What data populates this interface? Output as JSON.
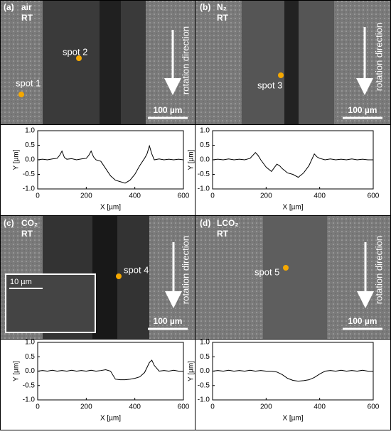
{
  "panels": [
    {
      "label": "(a)",
      "atmosphere": "air",
      "temperature": "RT",
      "spots": [
        "spot 2",
        "spot 1"
      ],
      "direction": "rotation direction",
      "scale": "100 µm"
    },
    {
      "label": "(b)",
      "atmosphere": "N₂",
      "temperature": "RT",
      "spots": [
        "spot 3"
      ],
      "direction": "rotation direction",
      "scale": "100 µm"
    },
    {
      "label": "(c)",
      "atmosphere": "CO₂",
      "temperature": "RT",
      "spots": [
        "spot 4"
      ],
      "direction": "rotation direction",
      "scale": "100 µm",
      "inset_scale": "10 µm"
    },
    {
      "label": "(d)",
      "atmosphere": "LCO₂",
      "temperature": "RT",
      "spots": [
        "spot 5"
      ],
      "direction": "rotation direction",
      "scale": "100 µm"
    }
  ],
  "chart_data": [
    {
      "type": "line",
      "xlabel": "X [µm]",
      "ylabel": "Y [µm]",
      "color": "#000000",
      "x": [
        0,
        20,
        40,
        60,
        80,
        90,
        100,
        110,
        120,
        140,
        160,
        180,
        200,
        210,
        220,
        230,
        240,
        260,
        280,
        300,
        320,
        340,
        360,
        380,
        400,
        420,
        440,
        450,
        460,
        470,
        480,
        500,
        520,
        540,
        560,
        580,
        600
      ],
      "values": [
        0.0,
        0.02,
        0.0,
        0.03,
        0.05,
        0.15,
        0.3,
        0.08,
        0.02,
        0.04,
        0.0,
        0.03,
        0.05,
        0.15,
        0.3,
        0.1,
        0.0,
        -0.05,
        -0.3,
        -0.55,
        -0.7,
        -0.75,
        -0.8,
        -0.7,
        -0.5,
        -0.2,
        0.05,
        0.2,
        0.48,
        0.2,
        0.0,
        0.03,
        0.0,
        0.02,
        0.0,
        0.02,
        0.0
      ],
      "xlim": [
        0,
        600
      ],
      "ylim": [
        -1,
        1
      ],
      "xticks": [
        0,
        200,
        400,
        600
      ],
      "yticks": [
        {
          "value": -1,
          "label": "-1.0"
        },
        {
          "value": -0.5,
          "label": "-0.5"
        },
        {
          "value": 0,
          "label": "0.0"
        },
        {
          "value": 0.5,
          "label": "0.5"
        },
        {
          "value": 1,
          "label": "1.0"
        }
      ]
    },
    {
      "type": "line",
      "xlabel": "X [µm]",
      "ylabel": "Y [µm]",
      "color": "#000000",
      "x": [
        0,
        20,
        40,
        60,
        80,
        100,
        120,
        140,
        160,
        170,
        180,
        200,
        220,
        240,
        250,
        260,
        280,
        300,
        320,
        340,
        360,
        380,
        390,
        400,
        420,
        440,
        460,
        480,
        500,
        520,
        540,
        560,
        580,
        600
      ],
      "values": [
        0.0,
        0.02,
        0.0,
        0.03,
        0.0,
        0.02,
        0.0,
        0.05,
        0.25,
        0.15,
        0.0,
        -0.25,
        -0.4,
        -0.15,
        -0.2,
        -0.3,
        -0.45,
        -0.5,
        -0.6,
        -0.45,
        -0.2,
        0.2,
        0.1,
        0.05,
        0.0,
        0.03,
        0.0,
        0.02,
        0.0,
        0.03,
        0.0,
        0.02,
        0.0,
        0.0
      ],
      "xlim": [
        0,
        600
      ],
      "ylim": [
        -1,
        1
      ],
      "xticks": [
        0,
        200,
        400,
        600
      ],
      "yticks": [
        {
          "value": -1,
          "label": "-1.0"
        },
        {
          "value": -0.5,
          "label": "-0.5"
        },
        {
          "value": 0,
          "label": "0.0"
        },
        {
          "value": 0.5,
          "label": "0.5"
        },
        {
          "value": 1,
          "label": "1.0"
        }
      ]
    },
    {
      "type": "line",
      "xlabel": "X [µm]",
      "ylabel": "Y [µm]",
      "color": "#000000",
      "x": [
        0,
        20,
        40,
        60,
        80,
        100,
        120,
        140,
        160,
        180,
        200,
        220,
        240,
        260,
        280,
        300,
        320,
        340,
        360,
        380,
        400,
        420,
        440,
        460,
        470,
        480,
        500,
        520,
        540,
        560,
        580,
        600
      ],
      "values": [
        0.0,
        0.02,
        0.0,
        0.03,
        0.0,
        0.02,
        0.0,
        0.03,
        0.0,
        0.02,
        0.0,
        0.03,
        0.0,
        0.02,
        0.05,
        0.0,
        -0.28,
        -0.3,
        -0.3,
        -0.28,
        -0.25,
        -0.2,
        -0.05,
        0.3,
        0.38,
        0.2,
        0.0,
        0.02,
        0.0,
        0.03,
        0.0,
        0.0
      ],
      "xlim": [
        0,
        600
      ],
      "ylim": [
        -1,
        1
      ],
      "xticks": [
        0,
        200,
        400,
        600
      ],
      "yticks": [
        {
          "value": -1,
          "label": "-1.0"
        },
        {
          "value": -0.5,
          "label": "-0.5"
        },
        {
          "value": 0,
          "label": "0.0"
        },
        {
          "value": 0.5,
          "label": "0.5"
        },
        {
          "value": 1,
          "label": "1.0"
        }
      ]
    },
    {
      "type": "line",
      "xlabel": "X [µm]",
      "ylabel": "Y [µm]",
      "color": "#000000",
      "x": [
        0,
        20,
        40,
        60,
        80,
        100,
        120,
        140,
        160,
        180,
        200,
        220,
        240,
        260,
        280,
        300,
        320,
        340,
        360,
        380,
        400,
        420,
        440,
        460,
        480,
        500,
        520,
        540,
        560,
        580,
        600
      ],
      "values": [
        0.0,
        0.02,
        0.0,
        0.03,
        0.0,
        0.02,
        0.0,
        0.03,
        0.0,
        0.02,
        0.0,
        0.0,
        -0.03,
        -0.12,
        -0.25,
        -0.32,
        -0.35,
        -0.33,
        -0.3,
        -0.22,
        -0.1,
        0.0,
        0.02,
        0.0,
        0.03,
        0.0,
        0.02,
        0.0,
        0.03,
        0.0,
        0.0
      ],
      "xlim": [
        0,
        600
      ],
      "ylim": [
        -1,
        1
      ],
      "xticks": [
        0,
        200,
        400,
        600
      ],
      "yticks": [
        {
          "value": -1,
          "label": "-1.0"
        },
        {
          "value": -0.5,
          "label": "-0.5"
        },
        {
          "value": 0,
          "label": "0.0"
        },
        {
          "value": 0.5,
          "label": "0.5"
        },
        {
          "value": 1,
          "label": "1.0"
        }
      ]
    }
  ]
}
